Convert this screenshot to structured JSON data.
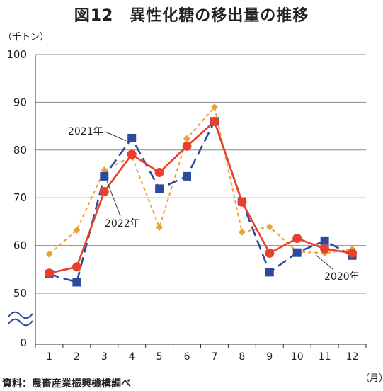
{
  "chart_title": "図12　異性化糖の移出量の推移",
  "source": "資料：農畜産業振興機構調べ",
  "chart_data": {
    "type": "line",
    "title": "図12　異性化糖の移出量の推移",
    "xlabel": "（月）",
    "ylabel": "（千トン）",
    "categories": [
      "1",
      "2",
      "3",
      "4",
      "5",
      "6",
      "7",
      "8",
      "9",
      "10",
      "11",
      "12"
    ],
    "y_ticks": [
      "0",
      "50",
      "60",
      "70",
      "80",
      "90",
      "100"
    ],
    "ylim": [
      50,
      100
    ],
    "axis_break": true,
    "grid": true,
    "series": [
      {
        "name": "2020年",
        "values": [
          58.2,
          63.2,
          75.8,
          78.6,
          63.8,
          82.4,
          89.0,
          62.8,
          63.9,
          58.7,
          58.4,
          59.2
        ],
        "color": "#f0a030",
        "marker": "diamond",
        "dash": "dotted"
      },
      {
        "name": "2021年",
        "values": [
          54.0,
          52.3,
          74.5,
          82.5,
          71.9,
          74.5,
          86.0,
          69.2,
          54.4,
          58.5,
          61.0,
          57.9
        ],
        "color": "#2e4a9e",
        "marker": "square",
        "dash": "dashed"
      },
      {
        "name": "2022年",
        "values": [
          54.2,
          55.5,
          71.3,
          79.1,
          75.3,
          80.8,
          86.0,
          69.1,
          58.4,
          61.5,
          59.3,
          58.4
        ],
        "color": "#e8402a",
        "marker": "circle",
        "dash": "solid"
      }
    ]
  }
}
